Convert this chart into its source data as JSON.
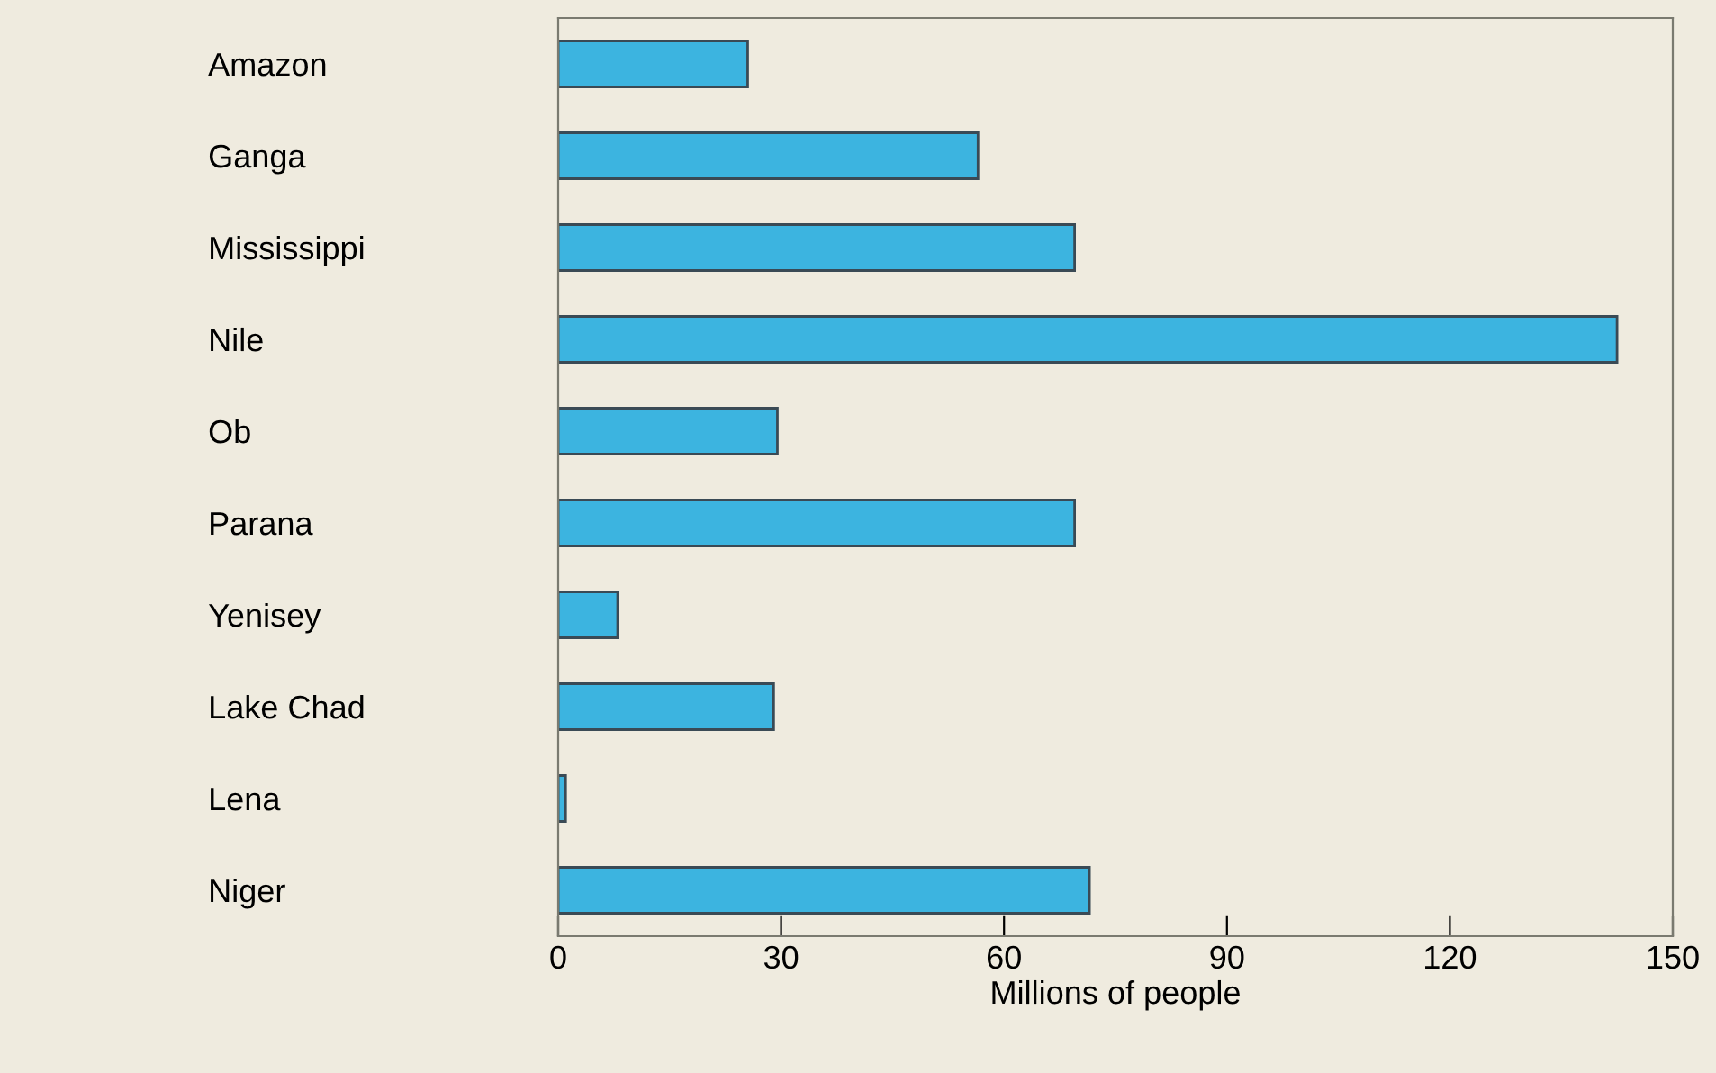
{
  "chart_data": {
    "type": "bar",
    "orientation": "horizontal",
    "xlabel": "Millions of people",
    "categories": [
      "Amazon",
      "Ganga",
      "Mississippi",
      "Nile",
      "Ob",
      "Parana",
      "Yenisey",
      "Lake Chad",
      "Lena",
      "Niger"
    ],
    "values": [
      25.5,
      56.5,
      69.5,
      142.5,
      29.5,
      69.5,
      8,
      29,
      1,
      71.5
    ],
    "color": "#3cb4e0",
    "xlim": [
      0,
      150
    ],
    "xticks": [
      0,
      30,
      60,
      90,
      120,
      150
    ],
    "grid": false,
    "legend": false
  }
}
